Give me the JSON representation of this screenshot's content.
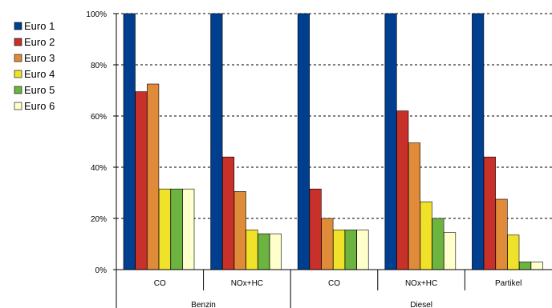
{
  "chart_data": {
    "type": "bar",
    "title": "",
    "xlabel": "",
    "ylabel": "",
    "ylim": [
      0,
      100
    ],
    "y_ticks": [
      "0%",
      "20%",
      "40%",
      "60%",
      "80%",
      "100%"
    ],
    "grid": "horizontal-dashed",
    "legend_position": "top-left",
    "categories": [
      "CO",
      "NOx+HC",
      "CO",
      "NOx+HC",
      "Partikel"
    ],
    "groups": [
      {
        "label": "Benzin",
        "categories": [
          0,
          1
        ]
      },
      {
        "label": "Diesel",
        "categories": [
          2,
          3,
          4
        ]
      }
    ],
    "series": [
      {
        "name": "Euro 1",
        "color": "#003f8f",
        "values": [
          100,
          100,
          100,
          100,
          100
        ]
      },
      {
        "name": "Euro 2",
        "color": "#c8302a",
        "values": [
          69.5,
          44,
          31.5,
          62,
          44
        ]
      },
      {
        "name": "Euro 3",
        "color": "#e08b3a",
        "values": [
          72.5,
          30.5,
          20,
          49.5,
          27.5
        ]
      },
      {
        "name": "Euro 4",
        "color": "#f0e22a",
        "values": [
          31.5,
          15.5,
          15.5,
          26.5,
          13.5
        ]
      },
      {
        "name": "Euro 5",
        "color": "#6db33f",
        "values": [
          31.5,
          14,
          15.5,
          20,
          3
        ]
      },
      {
        "name": "Euro 6",
        "color": "#ffffcc",
        "values": [
          31.5,
          14,
          15.5,
          14.5,
          3
        ]
      }
    ]
  }
}
